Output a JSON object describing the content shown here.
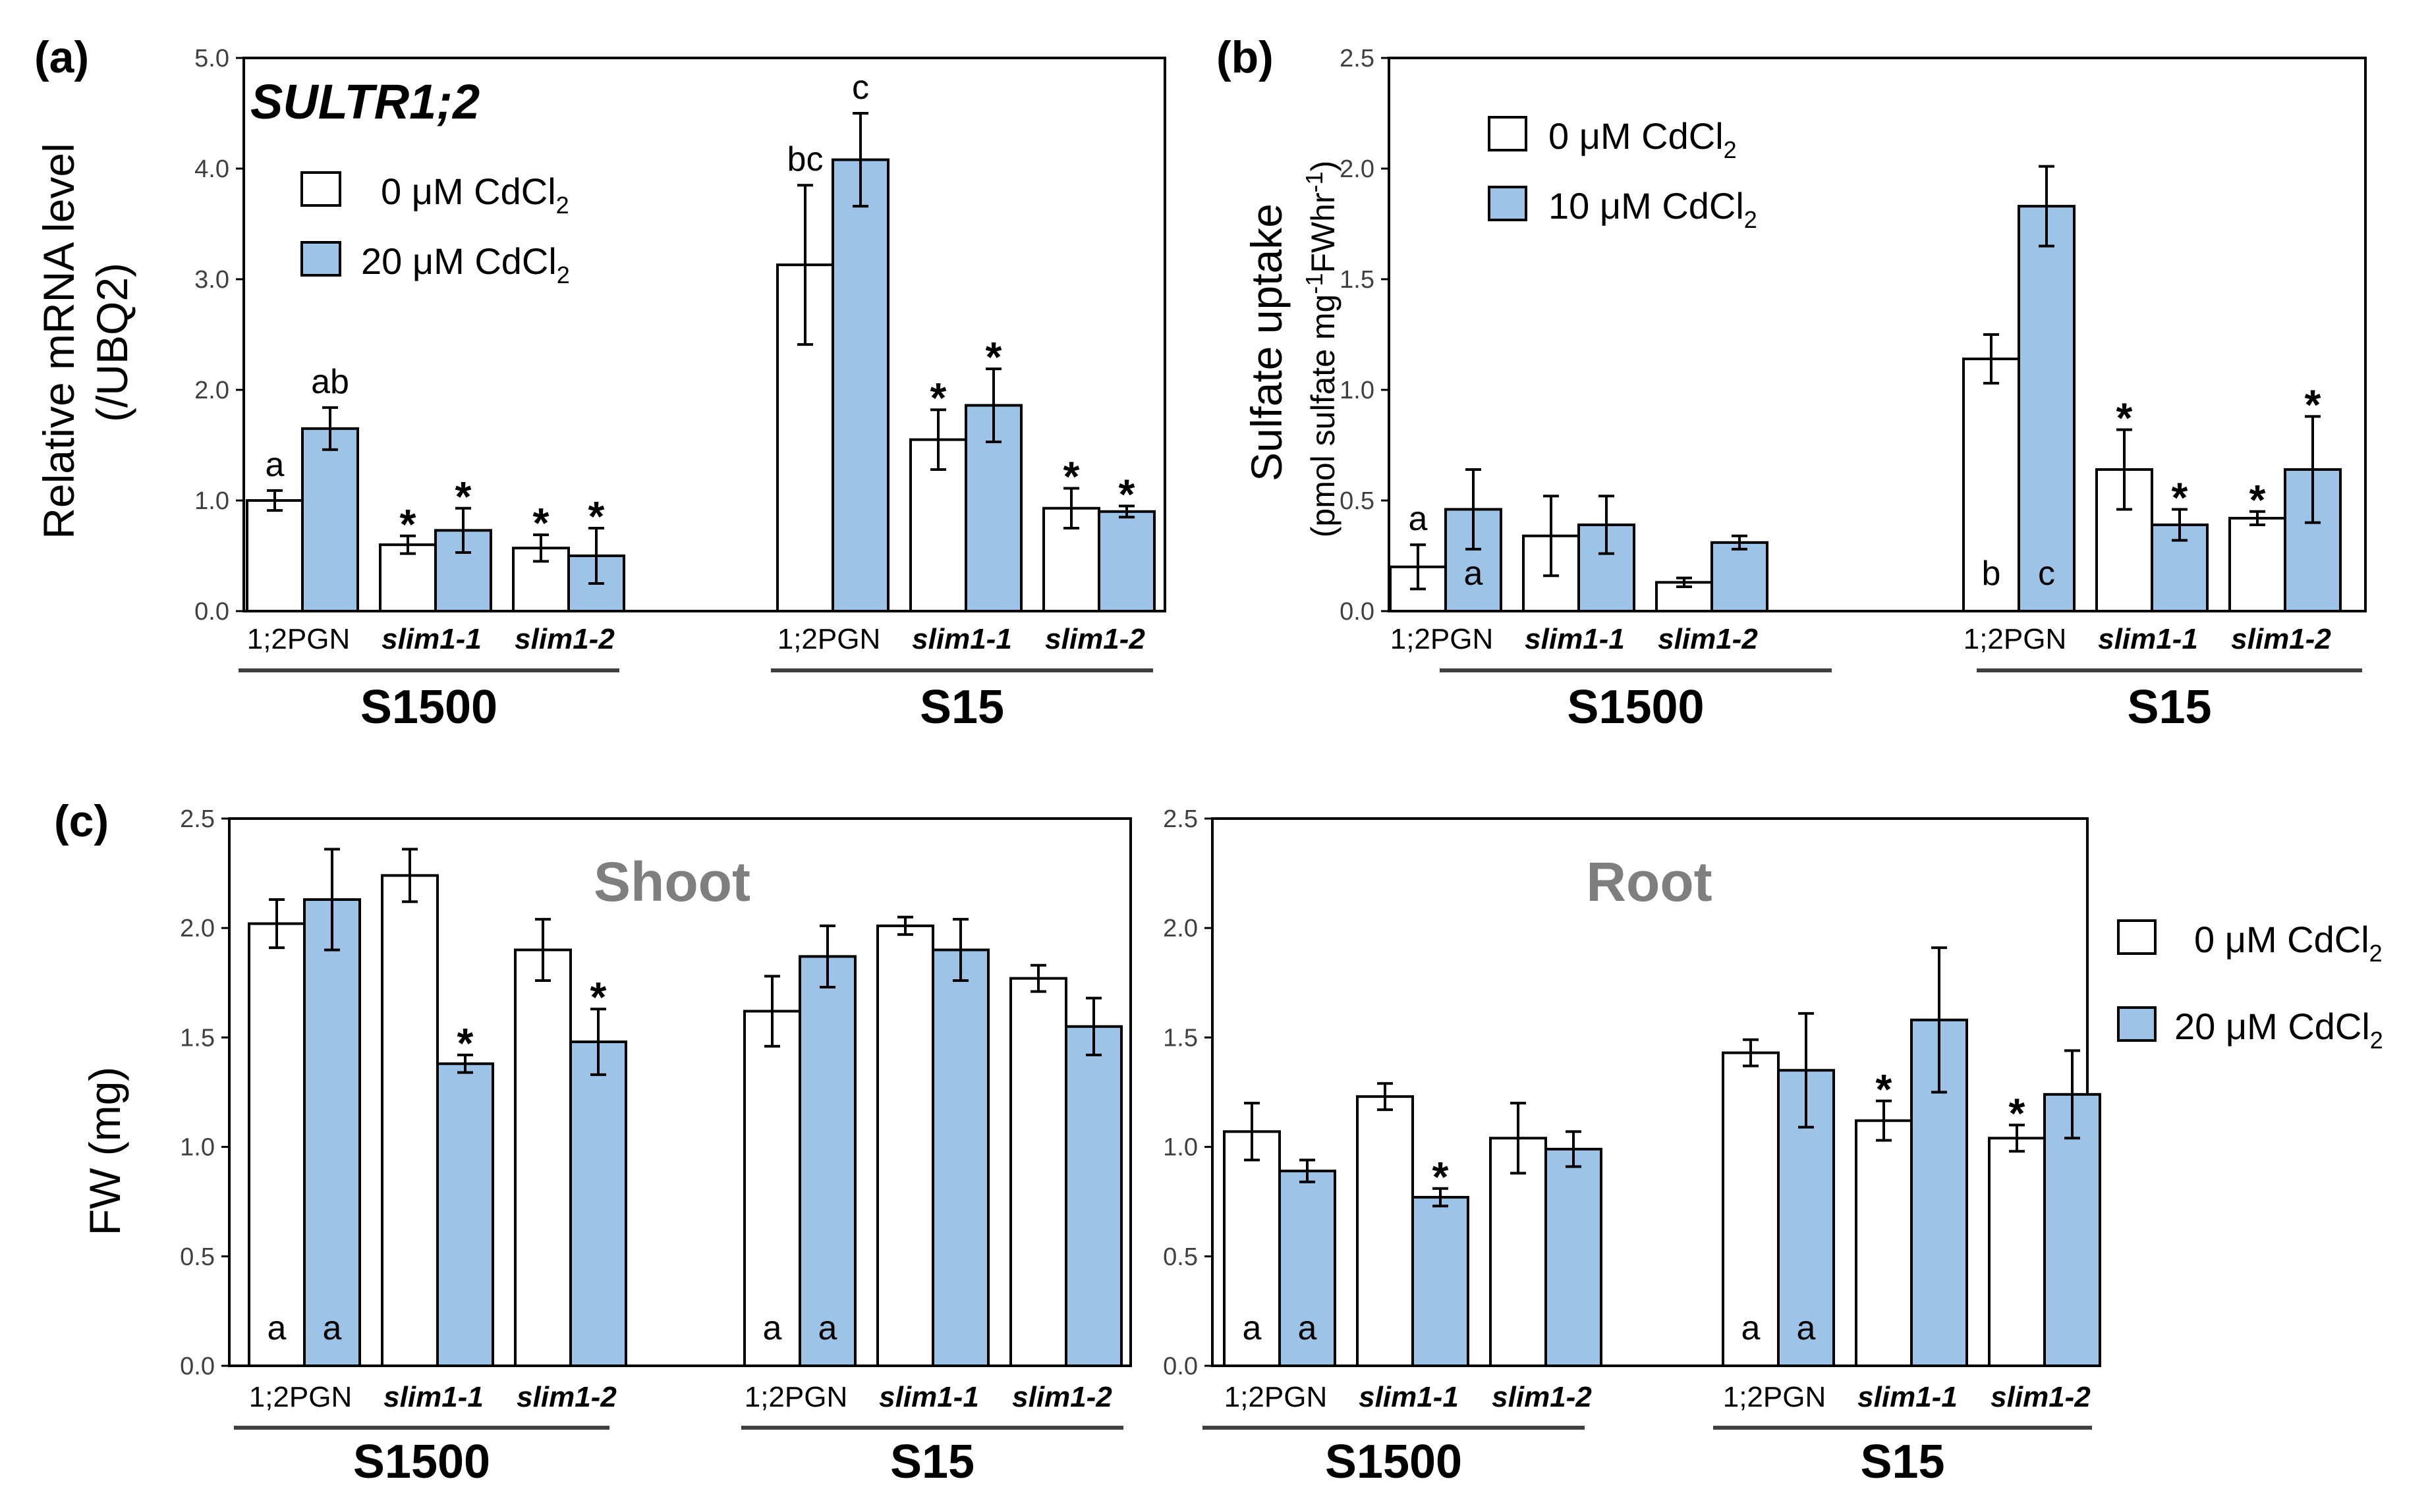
{
  "colors": {
    "control": "#ffffff",
    "cd": "#9dc3e6",
    "axis": "#000000"
  },
  "legend": {
    "a": [
      {
        "text": "0 μM CdCl",
        "sub": "2",
        "color": "#ffffff"
      },
      {
        "text": "20 μM CdCl",
        "sub": "2",
        "color": "#9dc3e6"
      }
    ],
    "b": [
      {
        "text": "0 μM CdCl",
        "sub": "2",
        "color": "#ffffff"
      },
      {
        "text": "10 μM CdCl",
        "sub": "2",
        "color": "#9dc3e6"
      }
    ],
    "c": [
      {
        "text": "0 μM CdCl",
        "sub": "2",
        "color": "#ffffff"
      },
      {
        "text": "20 μM CdCl",
        "sub": "2",
        "color": "#9dc3e6"
      }
    ]
  },
  "chart_data": [
    {
      "id": "a",
      "panel_label": "(a)",
      "type": "bar",
      "title": "SULTR1;2",
      "ylabel": "Relative mRNA level",
      "ylabel2": "(/UBQ2)",
      "ylim": [
        0,
        5
      ],
      "ticks": [
        "0.0",
        "1.0",
        "2.0",
        "3.0",
        "4.0",
        "5.0"
      ],
      "groups": [
        "S1500",
        "S15"
      ],
      "categories": [
        "1;2PGN",
        "slim1-1",
        "slim1-2",
        "1;2PGN",
        "slim1-1",
        "slim1-2"
      ],
      "series": [
        {
          "name": "0 μM CdCl2",
          "values": [
            1.0,
            0.6,
            0.57,
            3.13,
            1.55,
            0.93
          ],
          "errors": [
            0.09,
            0.08,
            0.12,
            0.72,
            0.27,
            0.18
          ]
        },
        {
          "name": "20 μM CdCl2",
          "values": [
            1.65,
            0.73,
            0.5,
            4.08,
            1.86,
            0.9
          ],
          "errors": [
            0.19,
            0.2,
            0.25,
            0.42,
            0.33,
            0.05
          ]
        }
      ],
      "annotations": [
        {
          "cat": 0,
          "series": 0,
          "pos": "above",
          "text": "a"
        },
        {
          "cat": 0,
          "series": 1,
          "pos": "above",
          "text": "ab"
        },
        {
          "cat": 3,
          "series": 0,
          "pos": "above",
          "text": "bc"
        },
        {
          "cat": 3,
          "series": 1,
          "pos": "above",
          "text": "c"
        },
        {
          "cat": 1,
          "series": 0,
          "pos": "star",
          "text": "*"
        },
        {
          "cat": 1,
          "series": 1,
          "pos": "star",
          "text": "*"
        },
        {
          "cat": 2,
          "series": 0,
          "pos": "star",
          "text": "*"
        },
        {
          "cat": 2,
          "series": 1,
          "pos": "star",
          "text": "*"
        },
        {
          "cat": 4,
          "series": 0,
          "pos": "star",
          "text": "*"
        },
        {
          "cat": 4,
          "series": 1,
          "pos": "star",
          "text": "*"
        },
        {
          "cat": 5,
          "series": 0,
          "pos": "star",
          "text": "*"
        },
        {
          "cat": 5,
          "series": 1,
          "pos": "star",
          "text": "*"
        }
      ]
    },
    {
      "id": "b",
      "panel_label": "(b)",
      "type": "bar",
      "title": "",
      "ylabel": "Sulfate uptake",
      "ylabel2": "(pmol sulfate mg-1FWhr-1)",
      "ylim": [
        0,
        2.5
      ],
      "ticks": [
        "0.0",
        "0.5",
        "1.0",
        "1.5",
        "2.0",
        "2.5"
      ],
      "groups": [
        "S1500",
        "S15"
      ],
      "categories": [
        "1;2PGN",
        "slim1-1",
        "slim1-2",
        "1;2PGN",
        "slim1-1",
        "slim1-2"
      ],
      "series": [
        {
          "name": "0 μM CdCl2",
          "values": [
            0.2,
            0.34,
            0.13,
            1.14,
            0.64,
            0.42
          ],
          "errors": [
            0.1,
            0.18,
            0.02,
            0.11,
            0.18,
            0.03
          ]
        },
        {
          "name": "10 μM CdCl2",
          "values": [
            0.46,
            0.39,
            0.31,
            1.83,
            0.39,
            0.64
          ],
          "errors": [
            0.18,
            0.13,
            0.03,
            0.18,
            0.07,
            0.24
          ]
        }
      ],
      "annotations": [
        {
          "cat": 0,
          "series": 0,
          "pos": "above",
          "text": "a"
        },
        {
          "cat": 0,
          "series": 1,
          "pos": "bottom",
          "text": "a"
        },
        {
          "cat": 3,
          "series": 0,
          "pos": "bottom",
          "text": "b"
        },
        {
          "cat": 3,
          "series": 1,
          "pos": "bottom",
          "text": "c"
        },
        {
          "cat": 4,
          "series": 0,
          "pos": "star",
          "text": "*"
        },
        {
          "cat": 4,
          "series": 1,
          "pos": "star",
          "text": "*"
        },
        {
          "cat": 5,
          "series": 0,
          "pos": "star",
          "text": "*"
        },
        {
          "cat": 5,
          "series": 1,
          "pos": "star",
          "text": "*"
        }
      ]
    },
    {
      "id": "c-shoot",
      "panel_label": "(c)",
      "type": "bar",
      "title": "Shoot",
      "ylabel": "FW (mg)",
      "ylabel2": "",
      "ylim": [
        0,
        2.5
      ],
      "ticks": [
        "0.0",
        "0.5",
        "1.0",
        "1.5",
        "2.0",
        "2.5"
      ],
      "groups": [
        "S1500",
        "S15"
      ],
      "categories": [
        "1;2PGN",
        "slim1-1",
        "slim1-2",
        "1;2PGN",
        "slim1-1",
        "slim1-2"
      ],
      "series": [
        {
          "name": "0 μM CdCl2",
          "values": [
            2.02,
            2.24,
            1.9,
            1.62,
            2.01,
            1.77
          ],
          "errors": [
            0.11,
            0.12,
            0.14,
            0.16,
            0.04,
            0.06
          ]
        },
        {
          "name": "20 μM CdCl2",
          "values": [
            2.13,
            1.38,
            1.48,
            1.87,
            1.9,
            1.55
          ],
          "errors": [
            0.23,
            0.04,
            0.15,
            0.14,
            0.14,
            0.13
          ]
        }
      ],
      "annotations": [
        {
          "cat": 0,
          "series": 0,
          "pos": "bottom",
          "text": "a"
        },
        {
          "cat": 0,
          "series": 1,
          "pos": "bottom",
          "text": "a"
        },
        {
          "cat": 3,
          "series": 0,
          "pos": "bottom",
          "text": "a"
        },
        {
          "cat": 3,
          "series": 1,
          "pos": "bottom",
          "text": "a"
        },
        {
          "cat": 1,
          "series": 1,
          "pos": "star",
          "text": "*"
        },
        {
          "cat": 2,
          "series": 1,
          "pos": "star",
          "text": "*"
        }
      ]
    },
    {
      "id": "c-root",
      "panel_label": "",
      "type": "bar",
      "title": "Root",
      "ylabel": "",
      "ylabel2": "",
      "ylim": [
        0,
        2.5
      ],
      "ticks": [
        "0.0",
        "0.5",
        "1.0",
        "1.5",
        "2.0",
        "2.5"
      ],
      "groups": [
        "S1500",
        "S15"
      ],
      "categories": [
        "1;2PGN",
        "slim1-1",
        "slim1-2",
        "1;2PGN",
        "slim1-1",
        "slim1-2"
      ],
      "series": [
        {
          "name": "0 μM CdCl2",
          "values": [
            1.07,
            1.23,
            1.04,
            1.43,
            1.12,
            1.04
          ],
          "errors": [
            0.13,
            0.06,
            0.16,
            0.06,
            0.09,
            0.06
          ]
        },
        {
          "name": "20 μM CdCl2",
          "values": [
            0.89,
            0.77,
            0.99,
            1.35,
            1.58,
            1.24
          ],
          "errors": [
            0.05,
            0.04,
            0.08,
            0.26,
            0.33,
            0.2
          ]
        }
      ],
      "annotations": [
        {
          "cat": 0,
          "series": 0,
          "pos": "bottom",
          "text": "a"
        },
        {
          "cat": 0,
          "series": 1,
          "pos": "bottom",
          "text": "a"
        },
        {
          "cat": 3,
          "series": 0,
          "pos": "bottom",
          "text": "a"
        },
        {
          "cat": 3,
          "series": 1,
          "pos": "bottom",
          "text": "a"
        },
        {
          "cat": 1,
          "series": 1,
          "pos": "star",
          "text": "*"
        },
        {
          "cat": 4,
          "series": 0,
          "pos": "star",
          "text": "*"
        },
        {
          "cat": 5,
          "series": 0,
          "pos": "star",
          "text": "*"
        }
      ]
    }
  ]
}
